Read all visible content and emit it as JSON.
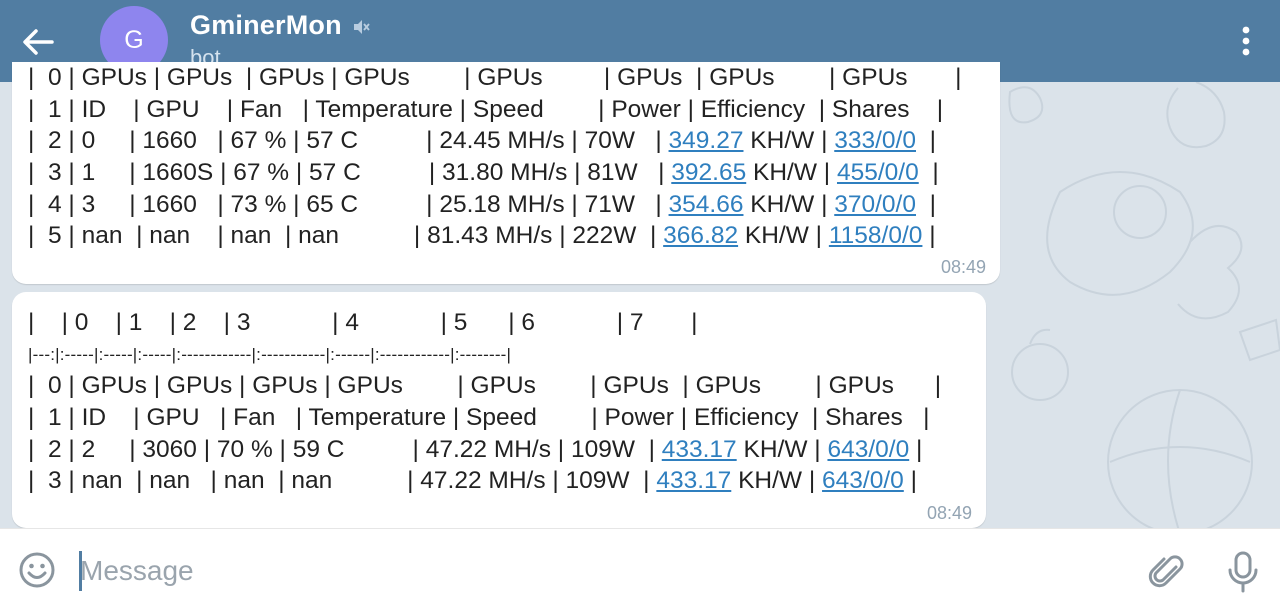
{
  "header": {
    "title": "GminerMon",
    "subtitle": "bot",
    "avatar_letter": "G",
    "avatar_color": "#8e85ee",
    "bar_color": "#517da2",
    "icons": {
      "back": "arrow-left-icon",
      "mute": "muted-speaker-icon",
      "menu": "more-vertical-icon"
    }
  },
  "messages": [
    {
      "time": "08:49",
      "lines": [
        [
          "|  0 | GPUs | GPUs  | GPUs | GPUs        | GPUs         | GPUs  | GPUs        | GPUs       |"
        ],
        [
          "|  1 | ID    | GPU    | Fan   | Temperature | Speed        | Power | Efficiency  | Shares    |"
        ],
        [
          "|  2 | 0     | 1660   | 67 % | 57 C          | 24.45 MH/s | 70W   | ",
          {
            "link": "349.27"
          },
          " KH/W | ",
          {
            "link": "333/0/0"
          },
          "  |"
        ],
        [
          "|  3 | 1     | 1660S | 67 % | 57 C          | 31.80 MH/s | 81W   | ",
          {
            "link": "392.65"
          },
          " KH/W | ",
          {
            "link": "455/0/0"
          },
          "  |"
        ],
        [
          "|  4 | 3     | 1660   | 73 % | 65 C          | 25.18 MH/s | 71W   | ",
          {
            "link": "354.66"
          },
          " KH/W | ",
          {
            "link": "370/0/0"
          },
          "  |"
        ],
        [
          "|  5 | nan  | nan    | nan  | nan           | 81.43 MH/s | 222W  | ",
          {
            "link": "366.82"
          },
          " KH/W | ",
          {
            "link": "1158/0/0"
          },
          " |"
        ]
      ]
    },
    {
      "time": "08:49",
      "lines": [
        [
          "|    | 0    | 1    | 2    | 3            | 4            | 5      | 6            | 7       |"
        ],
        [
          "|---:|:-----|:-----|:-----|:------------|:-----------|:------|:------------|:--------|"
        ],
        [
          "|  0 | GPUs | GPUs | GPUs | GPUs        | GPUs        | GPUs  | GPUs        | GPUs      |"
        ],
        [
          "|  1 | ID    | GPU   | Fan   | Temperature | Speed        | Power | Efficiency  | Shares   |"
        ],
        [
          "|  2 | 2     | 3060 | 70 % | 59 C          | 47.22 MH/s | 109W  | ",
          {
            "link": "433.17"
          },
          " KH/W | ",
          {
            "link": "643/0/0"
          },
          " |"
        ],
        [
          "|  3 | nan  | nan   | nan  | nan           | 47.22 MH/s | 109W  | ",
          {
            "link": "433.17"
          },
          " KH/W | ",
          {
            "link": "643/0/0"
          },
          " |"
        ]
      ]
    }
  ],
  "input": {
    "placeholder": "Message",
    "value": "",
    "icons": {
      "emoji": "emoji-smile-icon",
      "attach": "paperclip-icon",
      "mic": "microphone-icon"
    }
  },
  "colors": {
    "link": "#2f7fbf",
    "chat_background": "#dbe3ea",
    "time": "#93a4b3"
  }
}
